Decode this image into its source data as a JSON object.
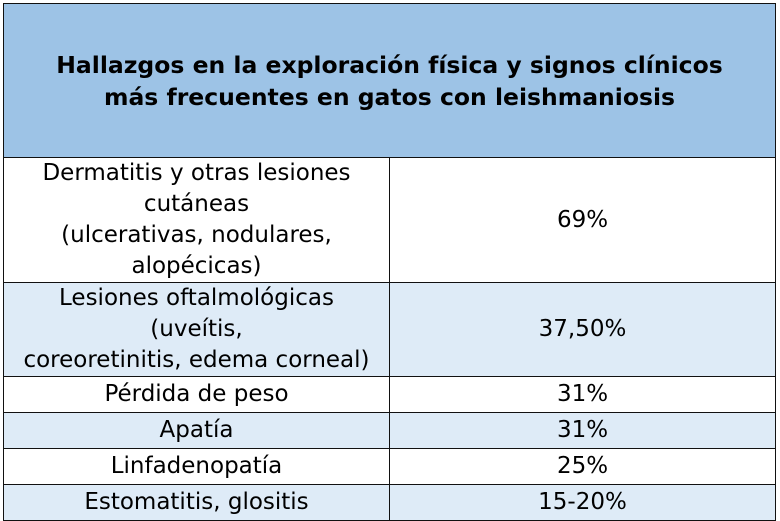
{
  "table": {
    "title_line1": "Hallazgos en la exploración física y signos clínicos",
    "title_line2": "más frecuentes en gatos con leishmaniosis",
    "rows": [
      {
        "finding_line1": "Dermatitis y otras lesiones cutáneas",
        "finding_line2": "(ulcerativas, nodulares, alopécicas)",
        "value": "69%"
      },
      {
        "finding_line1": "Lesiones oftalmológicas (uveítis,",
        "finding_line2": "coreoretinitis, edema corneal)",
        "value": "37,50%"
      },
      {
        "finding_line1": "Pérdida de peso",
        "value": "31%"
      },
      {
        "finding_line1": "Apatía",
        "value": "31%"
      },
      {
        "finding_line1": "Linfadenopatía",
        "value": "25%"
      },
      {
        "finding_line1": "Estomatitis, glositis",
        "value": "15-20%"
      }
    ],
    "colors": {
      "header_bg": "#9dc3e6",
      "alt_row_bg": "#deebf7",
      "row_bg": "#ffffff",
      "border": "#111111"
    }
  }
}
